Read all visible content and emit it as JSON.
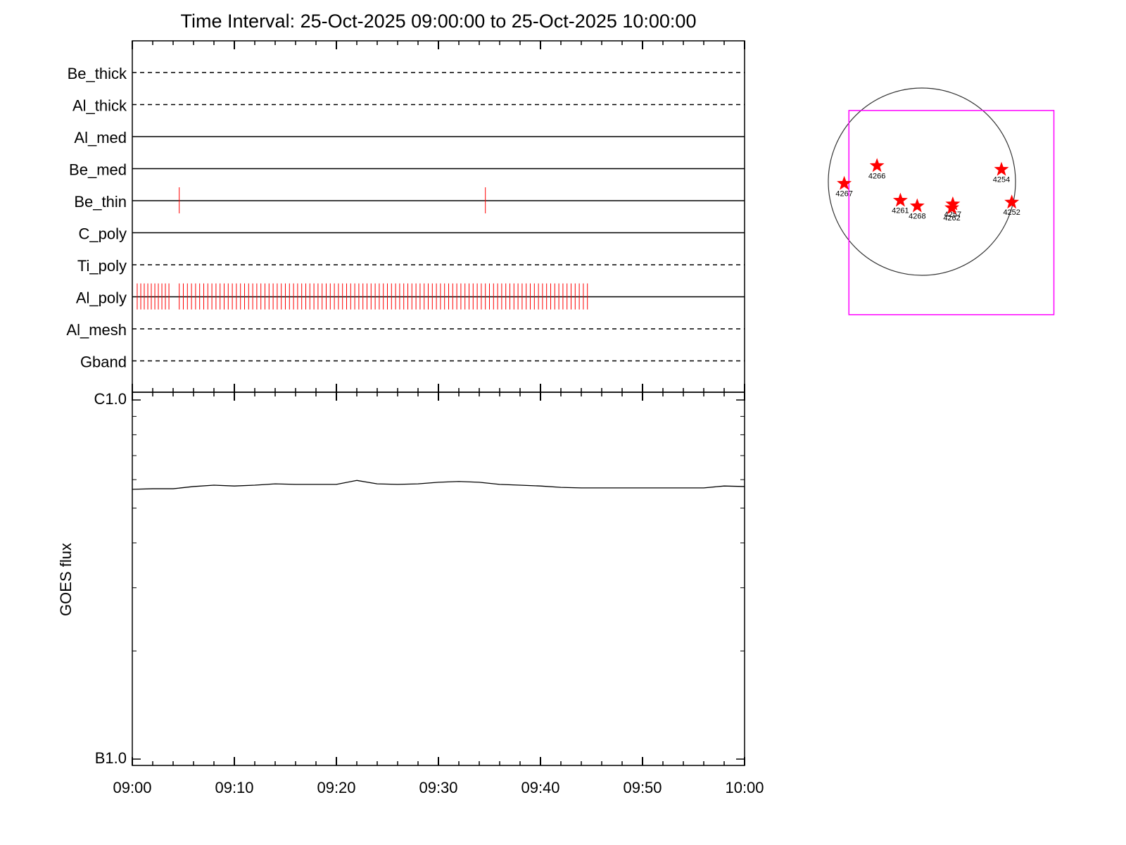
{
  "chart_data": [
    {
      "type": "event",
      "title": "Time Interval: 25-Oct-2025 09:00:00 to 25-Oct-2025 10:00:00",
      "categories": [
        "Be_thick",
        "Al_thick",
        "Al_med",
        "Be_med",
        "Be_thin",
        "C_poly",
        "Ti_poly",
        "Al_poly",
        "Al_mesh",
        "Gband"
      ],
      "line_styles": [
        "dashed",
        "dashed",
        "solid",
        "solid",
        "solid",
        "solid",
        "dashed",
        "solid",
        "dashed",
        "dashed"
      ],
      "color": "#ff0000",
      "events": [
        [],
        [],
        [],
        [],
        [
          4.6,
          34.6
        ],
        [],
        [],
        [
          0.48,
          0.83,
          1.17,
          1.52,
          1.86,
          2.21,
          2.55,
          2.9,
          3.24,
          3.59,
          4.6,
          5.0,
          5.4,
          5.8,
          6.2,
          6.6,
          7.0,
          7.4,
          7.8,
          8.2,
          8.6,
          9.0,
          9.4,
          9.8,
          10.2,
          10.6,
          11.0,
          11.4,
          11.8,
          12.2,
          12.6,
          13.0,
          13.4,
          13.8,
          14.2,
          14.6,
          15.0,
          15.4,
          15.8,
          16.2,
          16.6,
          17.0,
          17.4,
          17.8,
          18.2,
          18.6,
          19.0,
          19.4,
          19.8,
          20.2,
          20.6,
          21.0,
          21.4,
          21.8,
          22.2,
          22.6,
          23.0,
          23.4,
          23.8,
          24.2,
          24.6,
          25.0,
          25.4,
          25.8,
          26.2,
          26.6,
          27.0,
          27.4,
          27.8,
          28.2,
          28.6,
          29.0,
          29.4,
          29.8,
          30.2,
          30.6,
          31.0,
          31.4,
          31.8,
          32.2,
          32.6,
          33.0,
          33.4,
          33.8,
          34.2,
          34.6,
          35.0,
          35.4,
          35.8,
          36.2,
          36.6,
          37.0,
          37.4,
          37.8,
          38.2,
          38.6,
          39.0,
          39.4,
          39.8,
          40.2,
          40.6,
          41.0,
          41.4,
          41.8,
          42.2,
          42.6,
          43.0,
          43.4,
          43.8,
          44.2,
          44.6
        ],
        [],
        []
      ],
      "xlim": [
        0,
        60
      ],
      "xticks": [
        0,
        10,
        20,
        30,
        40,
        50,
        60
      ],
      "xminor": [
        2,
        4,
        6,
        8,
        12,
        14,
        16,
        18,
        22,
        24,
        26,
        28,
        32,
        34,
        36,
        38,
        42,
        44,
        46,
        48,
        52,
        54,
        56,
        58
      ]
    },
    {
      "type": "line",
      "ylabel": "GOES flux",
      "color": "#000000",
      "ylog": true,
      "x": [
        0,
        2,
        4,
        6,
        8,
        10,
        12,
        14,
        16,
        18,
        20,
        22,
        24,
        26,
        28,
        30,
        32,
        34,
        36,
        38,
        40,
        42,
        44,
        46,
        48,
        50,
        52,
        54,
        56,
        58,
        60
      ],
      "values": [
        5.64e-07,
        5.66e-07,
        5.66e-07,
        5.74e-07,
        5.79e-07,
        5.76e-07,
        5.79e-07,
        5.84e-07,
        5.82e-07,
        5.82e-07,
        5.82e-07,
        5.97e-07,
        5.84e-07,
        5.82e-07,
        5.84e-07,
        5.9e-07,
        5.93e-07,
        5.9e-07,
        5.82e-07,
        5.79e-07,
        5.76e-07,
        5.71e-07,
        5.69e-07,
        5.69e-07,
        5.69e-07,
        5.69e-07,
        5.69e-07,
        5.69e-07,
        5.69e-07,
        5.76e-07,
        5.74e-07
      ],
      "xlim": [
        0,
        60
      ],
      "xticks": [
        {
          "value": 0,
          "label": "09:00"
        },
        {
          "value": 10,
          "label": "09:10"
        },
        {
          "value": 20,
          "label": "09:20"
        },
        {
          "value": 30,
          "label": "09:30"
        },
        {
          "value": 40,
          "label": "09:40"
        },
        {
          "value": 50,
          "label": "09:50"
        },
        {
          "value": 60,
          "label": "10:00"
        }
      ],
      "xminor": [
        2,
        4,
        6,
        8,
        12,
        14,
        16,
        18,
        22,
        24,
        26,
        28,
        32,
        34,
        36,
        38,
        42,
        44,
        46,
        48,
        52,
        54,
        56,
        58
      ],
      "ylim": [
        1e-07,
        1e-06
      ],
      "yticks": [
        {
          "value": 1e-07,
          "label": "B1.0"
        },
        {
          "value": 1e-06,
          "label": "C1.0"
        }
      ],
      "yminor": [
        2e-07,
        3e-07,
        4e-07,
        5e-07,
        6e-07,
        7e-07,
        8e-07,
        9e-07
      ]
    },
    {
      "type": "map",
      "color": "#ff0000",
      "fov_color": "#ff00ff",
      "labels": [
        "4267",
        "4266",
        "4261",
        "4268",
        "4257",
        "4262",
        "4254",
        "4252"
      ],
      "x": [
        -0.83,
        -0.48,
        -0.23,
        -0.05,
        0.33,
        0.32,
        0.85,
        0.96
      ],
      "y": [
        -0.02,
        0.17,
        -0.2,
        -0.26,
        -0.24,
        -0.28,
        0.13,
        -0.22
      ],
      "fov": {
        "x": [
          -0.78,
          1.41
        ],
        "y": [
          -1.42,
          0.76
        ]
      }
    }
  ]
}
